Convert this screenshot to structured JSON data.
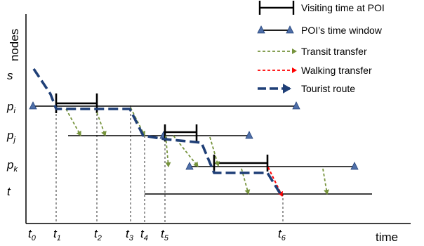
{
  "axes": {
    "y_label": "nodes",
    "x_label": "time"
  },
  "nodes": [
    {
      "name": "s",
      "sub": ""
    },
    {
      "name": "p",
      "sub": "i"
    },
    {
      "name": "p",
      "sub": "j"
    },
    {
      "name": "p",
      "sub": "k"
    },
    {
      "name": "t",
      "sub": ""
    }
  ],
  "times": [
    {
      "name": "t",
      "sub": "0"
    },
    {
      "name": "t",
      "sub": "1"
    },
    {
      "name": "t",
      "sub": "2"
    },
    {
      "name": "t",
      "sub": "3"
    },
    {
      "name": "t",
      "sub": "4"
    },
    {
      "name": "t",
      "sub": "5"
    },
    {
      "name": "t",
      "sub": "6"
    }
  ],
  "legend": {
    "visiting": "Visiting time at POI",
    "window": "POI’s time window",
    "transit": "Transit transfer",
    "walking": "Walking transfer",
    "route": "Tourist route"
  },
  "colors": {
    "route": "#1f3f77",
    "transit": "#76933c",
    "walking": "#ff0000",
    "window_marker": "#4f6fa8",
    "line": "#000000"
  }
}
